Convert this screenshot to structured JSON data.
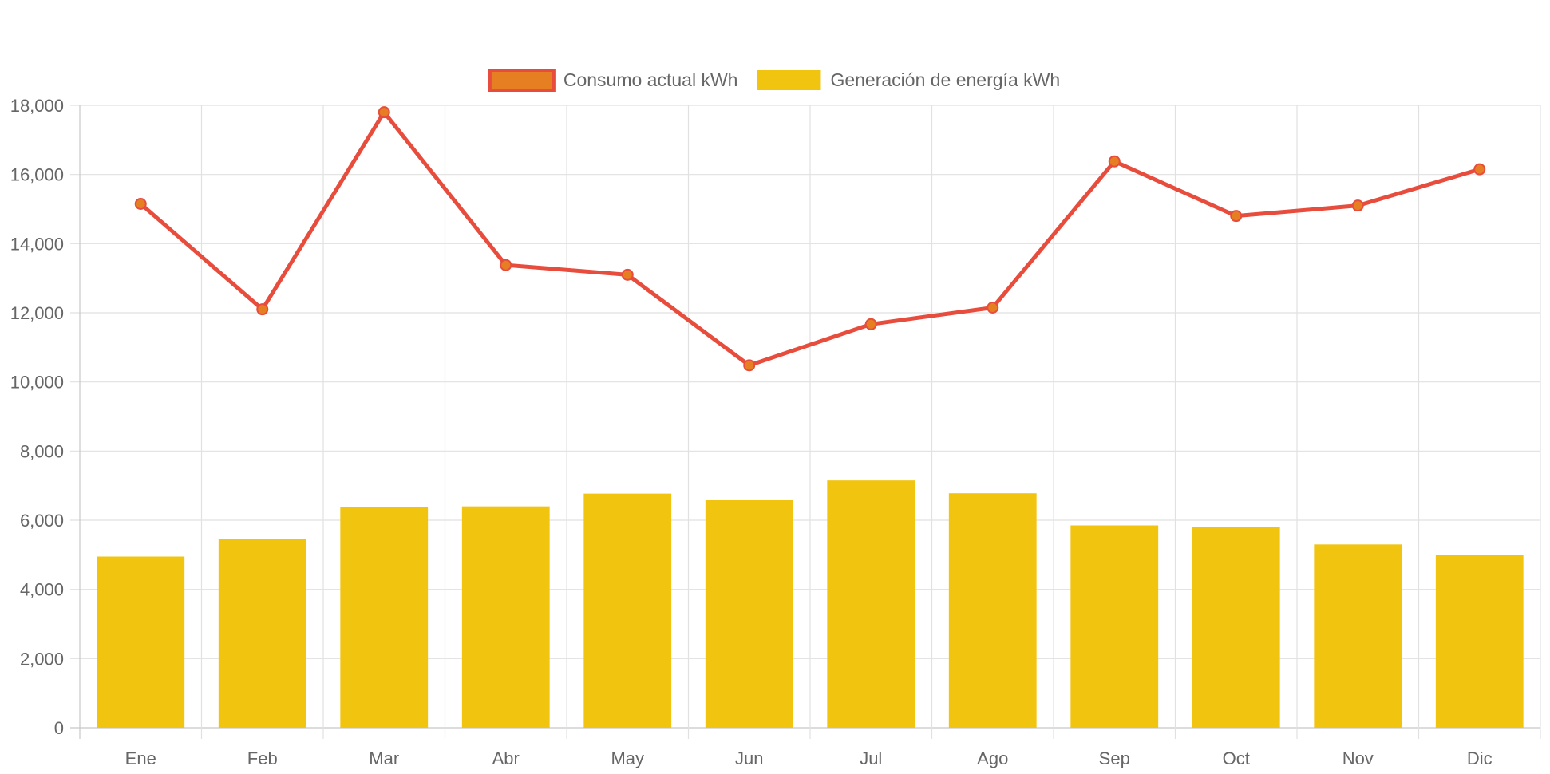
{
  "chart_data": {
    "type": "bar",
    "categories": [
      "Ene",
      "Feb",
      "Mar",
      "Abr",
      "May",
      "Jun",
      "Jul",
      "Ago",
      "Sep",
      "Oct",
      "Nov",
      "Dic"
    ],
    "series": [
      {
        "name": "Consumo actual kWh",
        "kind": "line",
        "color": "#e74c3c",
        "point_color": "#e67e22",
        "values": [
          15150,
          12100,
          17800,
          13380,
          13100,
          10480,
          11670,
          12150,
          16380,
          14800,
          15100,
          16150
        ]
      },
      {
        "name": "Generación de energía kWh",
        "kind": "bar",
        "color": "#f1c40f",
        "values": [
          4950,
          5450,
          6370,
          6400,
          6770,
          6600,
          7150,
          6780,
          5850,
          5800,
          5300,
          5000
        ]
      }
    ],
    "title": "",
    "xlabel": "",
    "ylabel": "",
    "ylim": [
      0,
      18000
    ],
    "yticks": [
      "0",
      "2,000",
      "4,000",
      "6,000",
      "8,000",
      "10,000",
      "12,000",
      "14,000",
      "16,000",
      "18,000"
    ],
    "grid": true,
    "legend_position": "top"
  }
}
